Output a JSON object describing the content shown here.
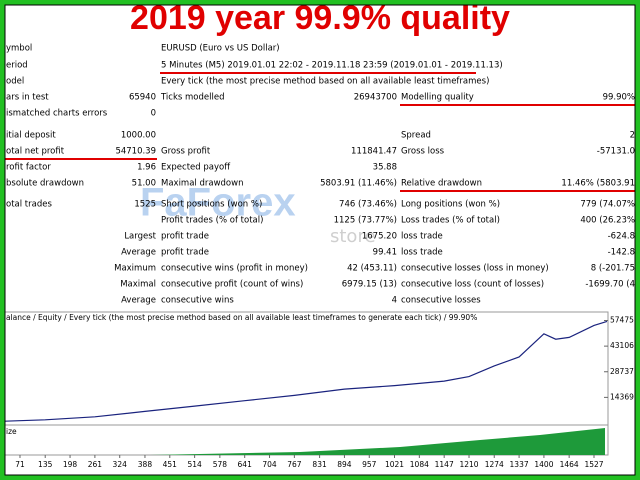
{
  "title": "2019 year 99.9% quality",
  "report": {
    "rows": [
      [
        "ymbol",
        null,
        "EURUSD (Euro vs US Dollar)",
        null,
        null,
        null
      ],
      [
        "eriod",
        null,
        "5 Minutes (M5) 2019.01.01 22:02 - 2019.11.18 23:59 (2019.01.01 - 2019.11.13)",
        null,
        null,
        null
      ],
      [
        "odel",
        null,
        "Every tick (the most precise method based on all available least timeframes)",
        null,
        null,
        null
      ],
      [
        "ars in test",
        "65940",
        "Ticks modelled",
        "26943700",
        "Modelling quality",
        "99.90%"
      ],
      [
        "ismatched charts errors",
        "0",
        null,
        null,
        null,
        null
      ],
      [
        "itial deposit",
        "1000.00",
        null,
        null,
        "Spread",
        "2"
      ],
      [
        "otal net profit",
        "54710.39",
        "Gross profit",
        "111841.47",
        "Gross loss",
        "-57131.0"
      ],
      [
        "rofit factor",
        "1.96",
        "Expected payoff",
        "35.88",
        null,
        null
      ],
      [
        "bsolute drawdown",
        "51.00",
        "Maximal drawdown",
        "5803.91 (11.46%)",
        "Relative drawdown",
        "11.46% (5803.91"
      ],
      [
        "otal trades",
        "1525",
        "Short positions (won %)",
        "746 (73.46%)",
        "Long positions (won %)",
        "779 (74.07%"
      ],
      [
        null,
        null,
        "Profit trades (% of total)",
        "1125 (73.77%)",
        "Loss trades (% of total)",
        "400 (26.23%"
      ],
      [
        null,
        "Largest",
        "profit trade",
        "1675.20",
        "loss trade",
        "-624.8"
      ],
      [
        null,
        "Average",
        "profit trade",
        "99.41",
        "loss trade",
        "-142.8"
      ],
      [
        null,
        "Maximum",
        "consecutive wins (profit in money)",
        "42 (453.11)",
        "consecutive losses (loss in money)",
        "8 (-201.75"
      ],
      [
        null,
        "Maximal",
        "consecutive profit (count of wins)",
        "6979.15 (13)",
        "consecutive loss (count of losses)",
        "-1699.70 (4"
      ],
      [
        null,
        "Average",
        "consecutive wins",
        "4",
        "consecutive losses",
        null
      ]
    ]
  },
  "watermark": [
    "FaForex",
    "store"
  ],
  "graph": {
    "type": "line",
    "legend": "alance / Equity / Every tick (the most precise method based on all available least timeframes to generate each tick) / 99.90%",
    "size_label": "ize",
    "xlim": [
      33,
      1560
    ],
    "ylim": [
      0,
      60000
    ],
    "xticks": [
      71,
      135,
      198,
      261,
      324,
      388,
      451,
      514,
      578,
      641,
      704,
      767,
      831,
      894,
      957,
      1021,
      1084,
      1147,
      1210,
      1274,
      1337,
      1400,
      1464,
      1527
    ],
    "yticks": [
      14369,
      28737,
      43106,
      57475
    ],
    "series": [
      {
        "name": "Balance",
        "color": "#1a237e",
        "x": [
          33,
          135,
          261,
          388,
          514,
          641,
          767,
          894,
          1021,
          1147,
          1210,
          1274,
          1337,
          1400,
          1430,
          1464,
          1527,
          1560
        ],
        "values": [
          1000,
          1800,
          3500,
          6500,
          9500,
          12500,
          15500,
          19000,
          21000,
          23500,
          26000,
          32000,
          37000,
          50000,
          47000,
          48000,
          54710,
          57000
        ]
      }
    ]
  }
}
